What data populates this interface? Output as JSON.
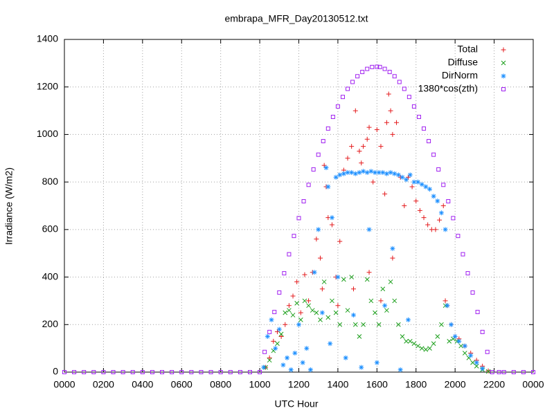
{
  "chart_data": {
    "type": "scatter",
    "title": "embrapa_MFR_Day20130512.txt",
    "xlabel": "UTC Hour",
    "ylabel": "Irradiance (W/m2)",
    "xlim": [
      0,
      24
    ],
    "ylim": [
      0,
      1400
    ],
    "xticks": [
      {
        "value": 0,
        "label": "0000"
      },
      {
        "value": 2,
        "label": "0200"
      },
      {
        "value": 4,
        "label": "0400"
      },
      {
        "value": 6,
        "label": "0600"
      },
      {
        "value": 8,
        "label": "0800"
      },
      {
        "value": 10,
        "label": "1000"
      },
      {
        "value": 12,
        "label": "1200"
      },
      {
        "value": 14,
        "label": "1400"
      },
      {
        "value": 16,
        "label": "1600"
      },
      {
        "value": 18,
        "label": "1800"
      },
      {
        "value": 20,
        "label": "2000"
      },
      {
        "value": 22,
        "label": "2200"
      },
      {
        "value": 24,
        "label": "0000"
      }
    ],
    "yticks": [
      0,
      200,
      400,
      600,
      800,
      1000,
      1200,
      1400
    ],
    "grid": true,
    "legend": "upper right",
    "series": [
      {
        "name": "Total",
        "color": "#e41a1c",
        "marker": "plus",
        "x": [
          10.3,
          10.5,
          10.7,
          10.9,
          11.1,
          11.3,
          11.5,
          11.7,
          11.9,
          12.1,
          12.3,
          12.5,
          12.7,
          12.9,
          13.1,
          13.2,
          13.3,
          13.4,
          13.5,
          13.7,
          13.9,
          14.0,
          14.1,
          14.3,
          14.5,
          14.7,
          14.8,
          14.9,
          15.1,
          15.2,
          15.3,
          15.5,
          15.6,
          15.6,
          15.8,
          16.0,
          16.2,
          16.2,
          16.4,
          16.5,
          16.6,
          16.7,
          16.8,
          16.8,
          17.0,
          17.2,
          17.4,
          17.6,
          17.8,
          18.0,
          18.2,
          18.4,
          18.6,
          18.8,
          19.0,
          19.2,
          19.4,
          19.5,
          19.6,
          19.8,
          20.0,
          20.2,
          20.5,
          20.8,
          21.1,
          21.4,
          21.7
        ],
        "values": [
          20,
          60,
          130,
          170,
          150,
          200,
          280,
          320,
          380,
          250,
          410,
          300,
          420,
          560,
          480,
          350,
          870,
          780,
          650,
          620,
          400,
          280,
          550,
          850,
          900,
          950,
          350,
          1100,
          930,
          880,
          950,
          980,
          1030,
          420,
          800,
          1020,
          950,
          300,
          750,
          1050,
          1170,
          1100,
          1000,
          480,
          1050,
          820,
          700,
          820,
          780,
          720,
          680,
          650,
          620,
          600,
          600,
          640,
          700,
          300,
          280,
          200,
          150,
          140,
          110,
          80,
          50,
          25,
          5
        ]
      },
      {
        "name": "Diffuse",
        "color": "#1a9e1a",
        "marker": "cross",
        "x": [
          10.3,
          10.5,
          10.7,
          10.9,
          11.1,
          11.3,
          11.5,
          11.7,
          11.9,
          12.1,
          12.3,
          12.5,
          12.7,
          12.9,
          13.1,
          13.3,
          13.5,
          13.7,
          13.9,
          14.1,
          14.3,
          14.5,
          14.7,
          14.9,
          15.1,
          15.3,
          15.5,
          15.7,
          15.9,
          16.1,
          16.3,
          16.5,
          16.7,
          16.9,
          17.1,
          17.3,
          17.5,
          17.7,
          17.9,
          18.1,
          18.3,
          18.5,
          18.7,
          18.9,
          19.1,
          19.3,
          19.5,
          19.7,
          19.9,
          20.1,
          20.3,
          20.5,
          20.7,
          20.9,
          21.1,
          21.4,
          21.7
        ],
        "values": [
          20,
          50,
          90,
          120,
          160,
          250,
          260,
          240,
          290,
          220,
          300,
          280,
          260,
          250,
          220,
          380,
          230,
          300,
          250,
          200,
          390,
          260,
          400,
          200,
          150,
          200,
          390,
          300,
          250,
          200,
          350,
          260,
          380,
          300,
          200,
          150,
          130,
          130,
          120,
          110,
          100,
          95,
          100,
          120,
          150,
          200,
          280,
          130,
          140,
          130,
          110,
          80,
          60,
          40,
          25,
          10,
          3
        ]
      },
      {
        "name": "DirNorm",
        "color": "#1e90ff",
        "marker": "star",
        "x": [
          10.2,
          10.4,
          10.6,
          10.8,
          11.0,
          11.2,
          11.4,
          11.6,
          11.8,
          12.0,
          12.2,
          12.4,
          12.6,
          12.8,
          13.0,
          13.2,
          13.4,
          13.5,
          13.6,
          13.7,
          13.9,
          14.0,
          14.1,
          14.3,
          14.4,
          14.5,
          14.7,
          14.8,
          14.9,
          15.1,
          15.2,
          15.3,
          15.5,
          15.6,
          15.7,
          15.9,
          16.0,
          16.1,
          16.3,
          16.4,
          16.5,
          16.7,
          16.8,
          16.9,
          17.1,
          17.2,
          17.3,
          17.5,
          17.6,
          17.7,
          17.9,
          18.1,
          18.3,
          18.5,
          18.7,
          18.9,
          19.1,
          19.3,
          19.5,
          19.6,
          19.8,
          20.0,
          20.2,
          20.5,
          20.8,
          21.1,
          21.4
        ],
        "values": [
          20,
          150,
          220,
          100,
          180,
          30,
          60,
          10,
          80,
          200,
          40,
          100,
          10,
          420,
          600,
          250,
          860,
          780,
          120,
          650,
          820,
          400,
          830,
          835,
          60,
          840,
          840,
          240,
          835,
          840,
          20,
          845,
          840,
          600,
          845,
          840,
          40,
          840,
          840,
          280,
          835,
          840,
          520,
          835,
          830,
          10,
          820,
          810,
          220,
          830,
          800,
          800,
          790,
          780,
          770,
          740,
          720,
          670,
          600,
          280,
          200,
          150,
          130,
          110,
          70,
          40,
          15
        ]
      },
      {
        "name": "1380*cos(zth)",
        "color": "#a020f0",
        "marker": "square",
        "x": [
          0,
          0.5,
          1,
          1.5,
          2,
          2.5,
          3,
          3.5,
          4,
          4.5,
          5,
          5.5,
          6,
          6.5,
          7,
          7.5,
          8,
          8.5,
          9,
          9.5,
          10,
          10.25,
          10.5,
          10.75,
          11,
          11.25,
          11.5,
          11.75,
          12,
          12.25,
          12.5,
          12.75,
          13,
          13.25,
          13.5,
          13.75,
          14,
          14.25,
          14.5,
          14.75,
          15,
          15.25,
          15.5,
          15.75,
          16,
          16.15,
          16.4,
          16.65,
          16.9,
          17.15,
          17.4,
          17.65,
          17.9,
          18.15,
          18.4,
          18.65,
          18.9,
          19.15,
          19.4,
          19.65,
          19.9,
          20.15,
          20.4,
          20.65,
          20.9,
          21.15,
          21.4,
          21.65,
          21.9,
          22.25,
          22.5,
          23,
          23.5,
          24
        ],
        "values": [
          0,
          0,
          0,
          0,
          0,
          0,
          0,
          0,
          0,
          0,
          0,
          0,
          0,
          0,
          0,
          0,
          0,
          0,
          0,
          0,
          0,
          85,
          169,
          253,
          335,
          416,
          496,
          573,
          648,
          719,
          788,
          853,
          915,
          972,
          1025,
          1074,
          1118,
          1158,
          1192,
          1221,
          1245,
          1263,
          1276,
          1284,
          1285,
          1284,
          1276,
          1263,
          1245,
          1221,
          1192,
          1158,
          1118,
          1074,
          1025,
          972,
          915,
          853,
          788,
          719,
          648,
          573,
          496,
          416,
          335,
          253,
          169,
          85,
          0,
          0,
          0,
          0,
          0,
          0
        ]
      }
    ]
  }
}
